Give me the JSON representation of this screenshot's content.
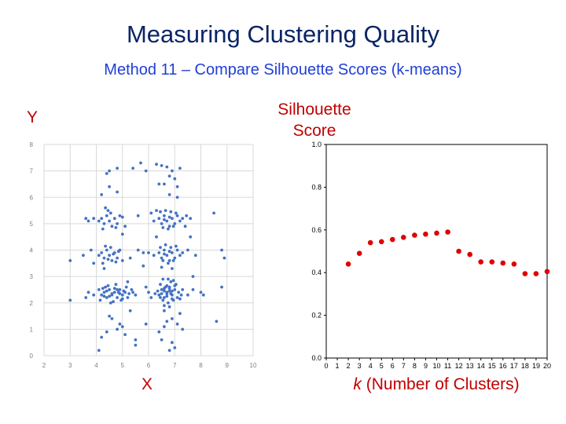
{
  "slide": {
    "title": "Measuring Clustering Quality",
    "subtitle": "Method 11 – Compare Silhouette Scores (k-means)"
  },
  "labels": {
    "y": "Y",
    "x": "X",
    "sil_line1": "Silhouette",
    "sil_line2": "Score",
    "k_var": "k",
    "k_rest": " (Number of Clusters)"
  },
  "colors": {
    "scatter_point": "#4472c4",
    "silhouette_point": "#e00000",
    "grid": "#d9d9d9",
    "accent_red": "#c00000"
  },
  "chart_data": [
    {
      "type": "scatter",
      "xlim": [
        2,
        10
      ],
      "ylim": [
        0,
        8
      ],
      "xticks": [
        "2",
        "3",
        "4",
        "5",
        "6",
        "7",
        "8",
        "9",
        "10"
      ],
      "yticks": [
        "0",
        "1",
        "2",
        "3",
        "4",
        "5",
        "6",
        "7",
        "8"
      ],
      "grid": true,
      "points": [
        [
          4.1,
          2.5
        ],
        [
          4.2,
          2.3
        ],
        [
          4.3,
          2.4
        ],
        [
          4.4,
          2.2
        ],
        [
          4.5,
          2.5
        ],
        [
          4.6,
          2.3
        ],
        [
          4.7,
          2.4
        ],
        [
          4.8,
          2.2
        ],
        [
          4.9,
          2.5
        ],
        [
          5.0,
          2.3
        ],
        [
          5.1,
          2.4
        ],
        [
          5.2,
          2.2
        ],
        [
          4.15,
          2.1
        ],
        [
          4.35,
          2.6
        ],
        [
          4.55,
          2.0
        ],
        [
          4.75,
          2.7
        ],
        [
          4.95,
          2.1
        ],
        [
          5.15,
          2.6
        ],
        [
          4.4,
          2.45
        ],
        [
          4.6,
          2.35
        ],
        [
          4.8,
          2.5
        ],
        [
          5.0,
          2.15
        ],
        [
          4.25,
          2.55
        ],
        [
          4.65,
          2.05
        ],
        [
          4.45,
          2.65
        ],
        [
          4.85,
          2.4
        ],
        [
          5.05,
          2.45
        ],
        [
          4.3,
          2.25
        ],
        [
          4.7,
          2.55
        ],
        [
          5.25,
          2.35
        ],
        [
          3.9,
          2.3
        ],
        [
          3.7,
          2.4
        ],
        [
          5.5,
          2.3
        ],
        [
          5.4,
          2.4
        ],
        [
          3.6,
          2.2
        ],
        [
          5.35,
          2.5
        ],
        [
          4.9,
          2.35
        ],
        [
          4.5,
          2.25
        ],
        [
          6.4,
          2.3
        ],
        [
          6.5,
          2.5
        ],
        [
          6.6,
          2.2
        ],
        [
          6.7,
          2.4
        ],
        [
          6.8,
          2.6
        ],
        [
          6.9,
          2.3
        ],
        [
          7.0,
          2.5
        ],
        [
          7.1,
          2.2
        ],
        [
          6.45,
          2.7
        ],
        [
          6.55,
          2.1
        ],
        [
          6.65,
          2.6
        ],
        [
          6.75,
          2.0
        ],
        [
          6.85,
          2.8
        ],
        [
          6.95,
          2.1
        ],
        [
          7.05,
          2.7
        ],
        [
          6.5,
          2.35
        ],
        [
          6.6,
          2.45
        ],
        [
          6.7,
          2.25
        ],
        [
          6.8,
          2.55
        ],
        [
          6.9,
          2.15
        ],
        [
          7.0,
          2.65
        ],
        [
          6.55,
          2.9
        ],
        [
          6.75,
          2.9
        ],
        [
          6.95,
          2.85
        ],
        [
          6.6,
          1.9
        ],
        [
          6.8,
          1.85
        ],
        [
          7.15,
          2.4
        ],
        [
          7.25,
          2.3
        ],
        [
          6.35,
          2.45
        ],
        [
          6.25,
          2.35
        ],
        [
          6.7,
          2.35
        ],
        [
          6.8,
          2.45
        ],
        [
          6.9,
          2.45
        ],
        [
          6.6,
          2.55
        ],
        [
          6.7,
          2.65
        ],
        [
          6.85,
          2.35
        ],
        [
          7.3,
          2.5
        ],
        [
          7.5,
          2.3
        ],
        [
          6.1,
          2.2
        ],
        [
          6.0,
          2.4
        ],
        [
          7.7,
          2.5
        ],
        [
          5.9,
          2.6
        ],
        [
          7.2,
          2.15
        ],
        [
          6.45,
          2.2
        ],
        [
          4.2,
          3.9
        ],
        [
          4.3,
          3.7
        ],
        [
          4.4,
          4.0
        ],
        [
          4.5,
          3.8
        ],
        [
          4.6,
          3.6
        ],
        [
          4.7,
          3.9
        ],
        [
          4.8,
          3.7
        ],
        [
          4.9,
          4.0
        ],
        [
          4.25,
          3.5
        ],
        [
          4.55,
          4.1
        ],
        [
          4.75,
          3.55
        ],
        [
          4.35,
          4.15
        ],
        [
          4.65,
          3.85
        ],
        [
          4.45,
          3.65
        ],
        [
          4.85,
          3.95
        ],
        [
          4.1,
          3.8
        ],
        [
          5.0,
          3.6
        ],
        [
          3.9,
          3.5
        ],
        [
          5.3,
          3.7
        ],
        [
          4.3,
          3.3
        ],
        [
          6.4,
          3.9
        ],
        [
          6.5,
          3.7
        ],
        [
          6.6,
          4.0
        ],
        [
          6.7,
          3.8
        ],
        [
          6.8,
          3.6
        ],
        [
          6.9,
          3.9
        ],
        [
          7.0,
          3.7
        ],
        [
          7.1,
          4.0
        ],
        [
          7.2,
          3.8
        ],
        [
          6.45,
          4.1
        ],
        [
          6.55,
          3.6
        ],
        [
          6.65,
          4.2
        ],
        [
          6.75,
          3.5
        ],
        [
          6.85,
          4.1
        ],
        [
          6.95,
          3.6
        ],
        [
          7.05,
          4.15
        ],
        [
          6.6,
          3.85
        ],
        [
          6.8,
          3.95
        ],
        [
          7.3,
          3.9
        ],
        [
          6.2,
          3.8
        ],
        [
          7.5,
          4.0
        ],
        [
          6.0,
          3.9
        ],
        [
          5.8,
          3.4
        ],
        [
          7.8,
          3.8
        ],
        [
          6.9,
          3.3
        ],
        [
          6.5,
          3.35
        ],
        [
          4.2,
          5.2
        ],
        [
          4.3,
          5.0
        ],
        [
          4.4,
          5.3
        ],
        [
          4.5,
          5.1
        ],
        [
          4.6,
          4.9
        ],
        [
          4.7,
          5.2
        ],
        [
          4.8,
          5.0
        ],
        [
          4.9,
          5.3
        ],
        [
          4.25,
          4.8
        ],
        [
          4.55,
          5.4
        ],
        [
          4.35,
          5.6
        ],
        [
          4.75,
          4.85
        ],
        [
          4.45,
          5.5
        ],
        [
          4.1,
          5.1
        ],
        [
          5.0,
          5.25
        ],
        [
          3.9,
          5.2
        ],
        [
          5.1,
          4.9
        ],
        [
          3.7,
          5.1
        ],
        [
          6.4,
          5.2
        ],
        [
          6.5,
          5.0
        ],
        [
          6.6,
          5.3
        ],
        [
          6.7,
          5.1
        ],
        [
          6.8,
          4.9
        ],
        [
          6.9,
          5.2
        ],
        [
          7.0,
          5.0
        ],
        [
          7.1,
          5.3
        ],
        [
          7.2,
          5.1
        ],
        [
          6.45,
          5.45
        ],
        [
          6.55,
          4.85
        ],
        [
          6.65,
          5.5
        ],
        [
          6.75,
          4.8
        ],
        [
          6.85,
          5.45
        ],
        [
          6.95,
          4.9
        ],
        [
          7.05,
          5.4
        ],
        [
          6.6,
          5.15
        ],
        [
          6.8,
          5.25
        ],
        [
          7.3,
          5.2
        ],
        [
          6.2,
          5.1
        ],
        [
          7.45,
          5.3
        ],
        [
          6.3,
          5.5
        ],
        [
          7.4,
          4.9
        ],
        [
          6.1,
          5.4
        ],
        [
          7.6,
          5.2
        ],
        [
          4.4,
          6.9
        ],
        [
          4.5,
          7.0
        ],
        [
          4.8,
          7.1
        ],
        [
          5.4,
          7.1
        ],
        [
          5.7,
          7.3
        ],
        [
          6.3,
          7.25
        ],
        [
          6.5,
          7.2
        ],
        [
          6.7,
          7.15
        ],
        [
          6.9,
          7.0
        ],
        [
          7.2,
          7.1
        ],
        [
          6.8,
          6.8
        ],
        [
          6.6,
          6.5
        ],
        [
          6.4,
          6.5
        ],
        [
          7.1,
          6.4
        ],
        [
          4.8,
          6.2
        ],
        [
          4.2,
          6.1
        ],
        [
          5.9,
          7.0
        ],
        [
          6.8,
          6.1
        ],
        [
          7.1,
          6.0
        ],
        [
          4.5,
          6.4
        ],
        [
          7.0,
          6.7
        ],
        [
          4.2,
          0.7
        ],
        [
          4.1,
          0.2
        ],
        [
          4.5,
          1.5
        ],
        [
          4.6,
          1.4
        ],
        [
          4.8,
          1.0
        ],
        [
          4.4,
          0.9
        ],
        [
          4.9,
          1.2
        ],
        [
          5.0,
          1.1
        ],
        [
          5.1,
          0.8
        ],
        [
          5.5,
          0.6
        ],
        [
          5.5,
          0.4
        ],
        [
          5.9,
          1.2
        ],
        [
          6.4,
          0.9
        ],
        [
          6.5,
          0.6
        ],
        [
          6.6,
          1.1
        ],
        [
          6.7,
          1.3
        ],
        [
          6.8,
          0.2
        ],
        [
          6.9,
          0.5
        ],
        [
          7.0,
          0.3
        ],
        [
          7.1,
          1.2
        ],
        [
          7.3,
          1.0
        ],
        [
          7.2,
          1.6
        ],
        [
          6.9,
          1.4
        ],
        [
          6.6,
          1.7
        ],
        [
          8.6,
          1.3
        ],
        [
          3.0,
          3.6
        ],
        [
          3.0,
          2.1
        ],
        [
          3.5,
          3.8
        ],
        [
          3.8,
          4.0
        ],
        [
          3.6,
          5.2
        ],
        [
          5.0,
          4.6
        ],
        [
          5.2,
          2.8
        ],
        [
          5.6,
          5.3
        ],
        [
          6.3,
          4.5
        ],
        [
          7.7,
          3.0
        ],
        [
          8.0,
          2.4
        ],
        [
          8.1,
          2.3
        ],
        [
          8.5,
          5.4
        ],
        [
          8.8,
          4.0
        ],
        [
          8.9,
          3.7
        ],
        [
          8.8,
          2.6
        ],
        [
          5.6,
          4.0
        ],
        [
          5.8,
          3.9
        ],
        [
          7.6,
          4.5
        ],
        [
          5.3,
          1.7
        ]
      ]
    },
    {
      "type": "scatter",
      "xlim": [
        0,
        20
      ],
      "ylim": [
        0.0,
        1.0
      ],
      "xticks": [
        "0",
        "1",
        "2",
        "3",
        "4",
        "5",
        "6",
        "7",
        "8",
        "9",
        "10",
        "11",
        "12",
        "13",
        "14",
        "15",
        "16",
        "17",
        "18",
        "19",
        "20"
      ],
      "yticks": [
        "0.0",
        "0.2",
        "0.4",
        "0.6",
        "0.8",
        "1.0"
      ],
      "grid": false,
      "x": [
        2,
        3,
        4,
        5,
        6,
        7,
        8,
        9,
        10,
        11,
        12,
        13,
        14,
        15,
        16,
        17,
        18,
        19,
        20
      ],
      "y": [
        0.44,
        0.49,
        0.54,
        0.545,
        0.555,
        0.565,
        0.575,
        0.58,
        0.585,
        0.59,
        0.5,
        0.485,
        0.45,
        0.45,
        0.445,
        0.44,
        0.395,
        0.395,
        0.405
      ]
    }
  ]
}
